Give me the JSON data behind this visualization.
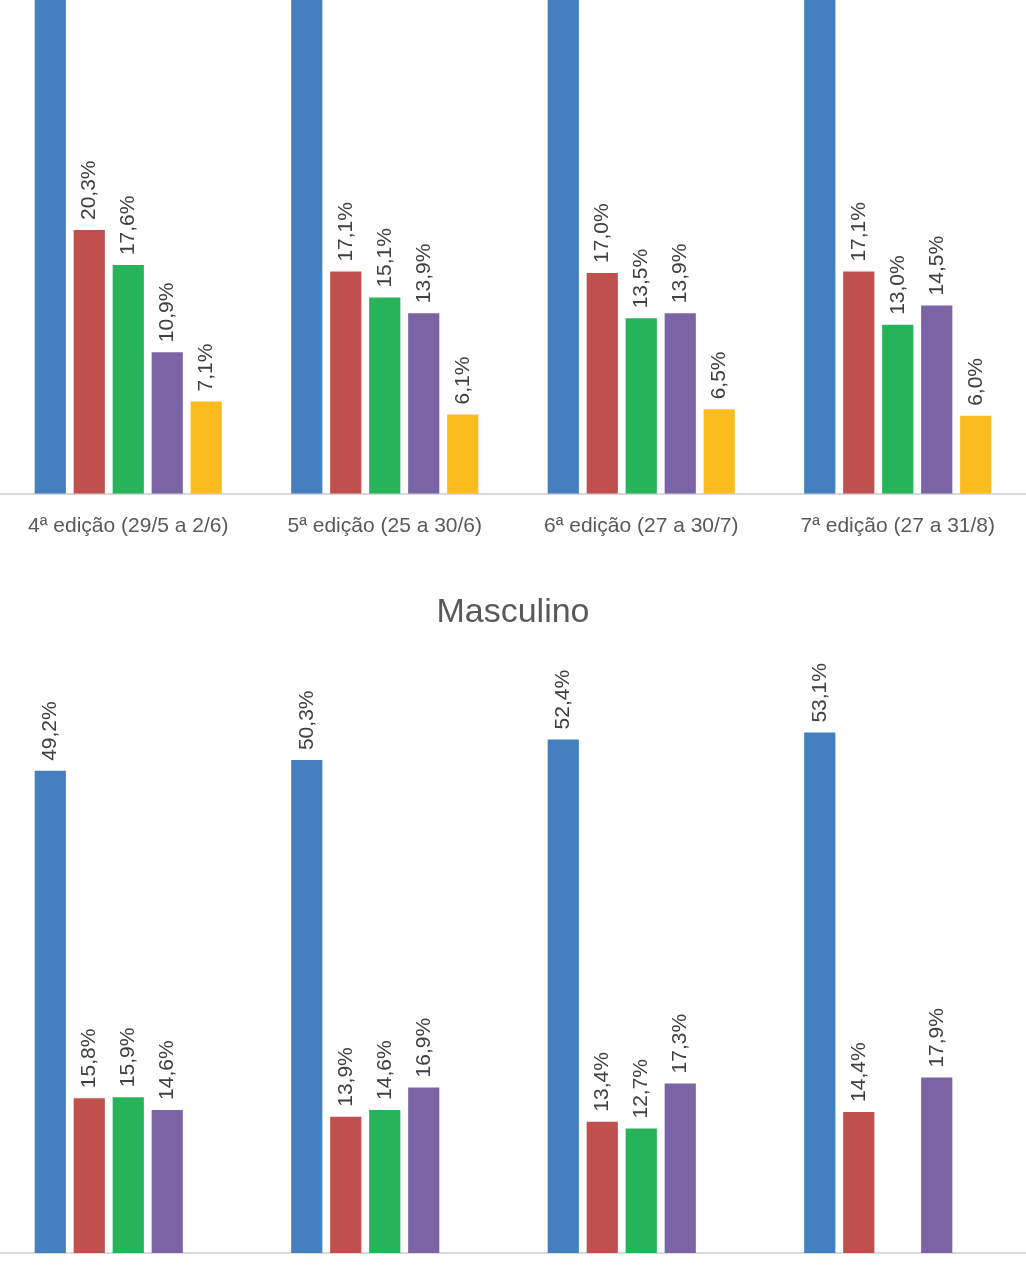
{
  "chart_data": [
    {
      "type": "bar",
      "categories": [
        "4ª edição (29/5 a 2/6)",
        "5ª edição (25 a 30/6)",
        "6ª edição (27 a 30/7)",
        "7ª edição (27 a 31/8)"
      ],
      "ylim": [
        0,
        38
      ],
      "tick_labels": "x",
      "series": [
        {
          "color": "#4480c0",
          "values": [
            38,
            38,
            38,
            38
          ],
          "value_labels": [
            null,
            null,
            null,
            null
          ]
        },
        {
          "color": "#c0504d",
          "values": [
            20.3,
            17.1,
            17.0,
            17.1
          ],
          "value_labels": [
            "20,3%",
            "17,1%",
            "17,0%",
            "17,1%"
          ]
        },
        {
          "color": "#27b35a",
          "values": [
            17.6,
            15.1,
            13.5,
            13.0
          ],
          "value_labels": [
            "17,6%",
            "15,1%",
            "13,5%",
            "13,0%"
          ]
        },
        {
          "color": "#7b64a6",
          "values": [
            10.9,
            13.9,
            13.9,
            14.5
          ],
          "value_labels": [
            "10,9%",
            "13,9%",
            "13,9%",
            "14,5%"
          ]
        },
        {
          "color": "#fbbd1e",
          "values": [
            7.1,
            6.1,
            6.5,
            6.0
          ],
          "value_labels": [
            "7,1%",
            "6,1%",
            "6,5%",
            "6,0%"
          ]
        }
      ]
    },
    {
      "type": "bar",
      "title": "Masculino",
      "categories": [
        null,
        null,
        null,
        null
      ],
      "tick_labels": false,
      "series": [
        {
          "color": "#4480c0",
          "values": [
            49.2,
            50.3,
            52.4,
            53.1
          ],
          "value_labels": [
            "49,2%",
            "50,3%",
            "52,4%",
            "53,1%"
          ]
        },
        {
          "color": "#c0504d",
          "values": [
            15.8,
            13.9,
            13.4,
            14.4
          ],
          "value_labels": [
            "15,8%",
            "13,9%",
            "13,4%",
            "14,4%"
          ]
        },
        {
          "color": "#27b35a",
          "values": [
            15.9,
            14.6,
            12.7,
            null
          ],
          "value_labels": [
            "15,9%",
            "14,6%",
            "12,7%",
            null
          ]
        },
        {
          "color": "#7b64a6",
          "values": [
            14.6,
            16.9,
            17.3,
            17.9
          ],
          "value_labels": [
            "14,6%",
            "16,9%",
            "17,3%",
            "17,9%"
          ]
        },
        {
          "color": "#fbbd1e",
          "values": [
            null,
            null,
            null,
            null
          ],
          "value_labels": [
            null,
            null,
            null,
            null
          ]
        }
      ]
    }
  ]
}
